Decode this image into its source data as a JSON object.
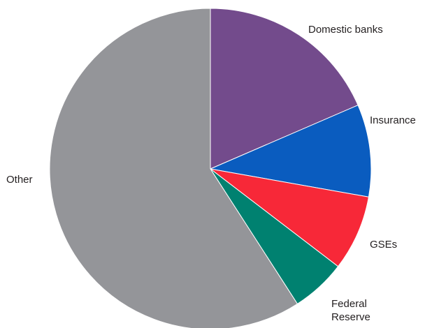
{
  "chart_data": {
    "type": "pie",
    "start_angle_deg": 0,
    "direction": "clockwise",
    "slices": [
      {
        "label": "Domestic banks",
        "value": 18.5,
        "color": "#734b8c"
      },
      {
        "label": "Insurance",
        "value": 9.3,
        "color": "#0a5cbf"
      },
      {
        "label": "GSEs",
        "value": 7.6,
        "color": "#f72838"
      },
      {
        "label": "Federal Reserve",
        "value": 5.5,
        "color": "#008170"
      },
      {
        "label": "Other",
        "value": 59.1,
        "color": "#949599"
      }
    ],
    "legend": "none"
  }
}
